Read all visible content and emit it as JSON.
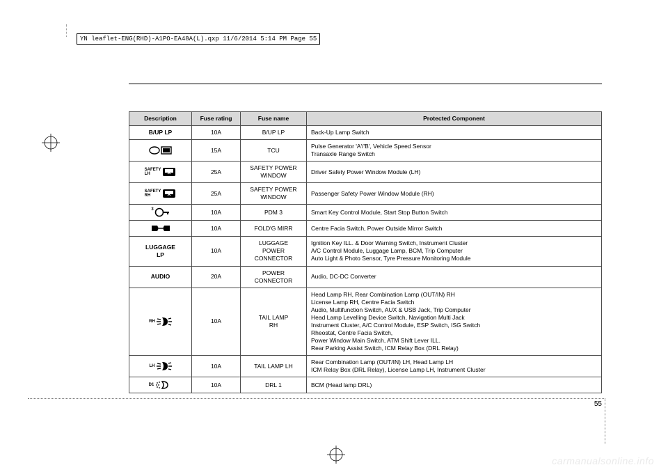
{
  "header_info": "YN leaflet-ENG(RHD)-A1PO-EA48A(L).qxp  11/6/2014  5:14 PM  Page 55",
  "page_number": "55",
  "watermark": "carmanualsonline.info",
  "table": {
    "columns": [
      "Description",
      "Fuse rating",
      "Fuse name",
      "Protected Component"
    ],
    "rows": [
      {
        "desc_type": "text",
        "desc_text": "B/UP LP",
        "rating": "10A",
        "name": "B/UP LP",
        "component": "Back-Up Lamp Switch"
      },
      {
        "desc_type": "icon",
        "icon": "tcu",
        "rating": "15A",
        "name": "TCU",
        "component": "Pulse Generator 'A'/'B', Vehicle Speed Sensor\nTransaxle Range Switch"
      },
      {
        "desc_type": "icon-label",
        "label": "SAFETY\nLH",
        "icon": "window",
        "rating": "25A",
        "name": "SAFETY POWER\nWINDOW",
        "component": "Driver Safety Power Window Module (LH)"
      },
      {
        "desc_type": "icon-label",
        "label": "SAFETY\nRH",
        "icon": "window",
        "rating": "25A",
        "name": "SAFETY POWER\nWINDOW",
        "component": "Passenger Safety Power Window Module (RH)"
      },
      {
        "desc_type": "icon-sup",
        "sup": "3",
        "icon": "key",
        "rating": "10A",
        "name": "PDM 3",
        "component": "Smart Key Control Module, Start Stop Button Switch"
      },
      {
        "desc_type": "icon",
        "icon": "mirror",
        "rating": "10A",
        "name": "FOLD'G MIRR",
        "component": "Centre Facia Switch, Power Outside Mirror Switch"
      },
      {
        "desc_type": "text",
        "desc_text": "LUGGAGE\nLP",
        "rating": "10A",
        "name": "LUGGAGE\nPOWER\nCONNECTOR",
        "component": "Ignition Key ILL. & Door Warning Switch, Instrument Cluster\nA/C Control Module, Luggage Lamp, BCM, Trip Computer\nAuto Light & Photo Sensor, Tyre Pressure Monitoring Module"
      },
      {
        "desc_type": "text",
        "desc_text": "AUDIO",
        "rating": "20A",
        "name": "POWER\nCONNECTOR",
        "component": "Audio, DC-DC Converter"
      },
      {
        "desc_type": "icon-label",
        "label": "RH",
        "icon": "lamp",
        "rating": "10A",
        "name": "TAIL LAMP\nRH",
        "component": "Head Lamp RH, Rear Combination Lamp (OUT/IN) RH\nLicense Lamp RH, Centre Facia Switch\nAudio, Multifunction Switch, AUX & USB Jack, Trip Computer\nHead Lamp Levelling Device Switch, Navigation Multi Jack\nInstrument Cluster, A/C Control Module, ESP Switch, ISG Switch\nRheostat, Centre Facia Switch,\nPower Window Main Switch, ATM Shift Lever ILL.\nRear Parking Assist Switch, ICM Relay Box (DRL Relay)"
      },
      {
        "desc_type": "icon-label",
        "label": "LH",
        "icon": "lamp",
        "rating": "10A",
        "name": "TAIL LAMP LH",
        "component": "Rear Combination Lamp (OUT/IN) LH, Head Lamp LH\nICM Relay Box (DRL Relay), License Lamp LH, Instrument Cluster"
      },
      {
        "desc_type": "icon-label",
        "label": "D1",
        "icon": "drl",
        "rating": "10A",
        "name": "DRL 1",
        "component": "BCM (Head lamp DRL)"
      }
    ]
  },
  "colors": {
    "header_bg": "#d9d9d9",
    "border": "#4c4c4c",
    "dots": "#7a7a7a",
    "watermark": "#eaeaea"
  },
  "fonts": {
    "body_size_pt": 8.5,
    "header_size_pt": 9,
    "page_num_size_pt": 10
  }
}
